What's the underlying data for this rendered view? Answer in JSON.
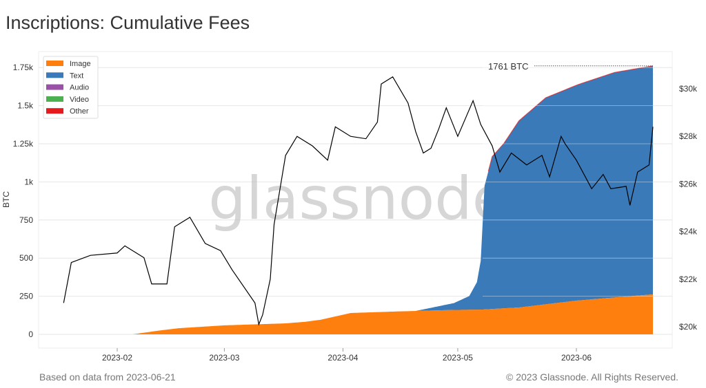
{
  "title": "Inscriptions: Cumulative Fees",
  "footer": {
    "left": "Based on data from 2023-06-21",
    "right": "© 2023 Glassnode. All Rights Reserved."
  },
  "watermark": "glassnode",
  "chart_data": {
    "type": "area",
    "title": "Inscriptions: Cumulative Fees",
    "ylabel": "BTC",
    "ylim": [
      0,
      1800
    ],
    "y_ticks": [
      "0",
      "250",
      "500",
      "750",
      "1k",
      "1.25k",
      "1.5k",
      "1.75k"
    ],
    "y2_ticks": [
      "$20k",
      "$22k",
      "$24k",
      "$26k",
      "$28k",
      "$30k"
    ],
    "y2lim": [
      19700,
      31300
    ],
    "x_ticks": [
      "2023-02",
      "2023-03",
      "2023-04",
      "2023-05",
      "2023-06"
    ],
    "grid": true,
    "legend": {
      "position": "top-left",
      "entries": [
        {
          "name": "Image",
          "color": "#ff7f0e"
        },
        {
          "name": "Text",
          "color": "#3a7ab8"
        },
        {
          "name": "Audio",
          "color": "#9b4fa8"
        },
        {
          "name": "Video",
          "color": "#4caf50"
        },
        {
          "name": "Other",
          "color": "#e41a1c"
        }
      ]
    },
    "annotation": "1761 BTC",
    "series": [
      {
        "name": "Image",
        "color": "#ff7f0e",
        "x": [
          "2023-02-05",
          "2023-02-12",
          "2023-02-17",
          "2023-03-01",
          "2023-03-17",
          "2023-03-22",
          "2023-03-26",
          "2023-04-03",
          "2023-04-15",
          "2023-04-30",
          "2023-05-07",
          "2023-05-17",
          "2023-06-01",
          "2023-06-10",
          "2023-06-21"
        ],
        "values": [
          0,
          25,
          40,
          59,
          72,
          82,
          95,
          140,
          150,
          160,
          162,
          176,
          221,
          240,
          262
        ]
      },
      {
        "name": "Text",
        "color": "#3a7ab8",
        "x": [
          "2023-04-20",
          "2023-04-30",
          "2023-05-04",
          "2023-05-06",
          "2023-05-07",
          "2023-05-08",
          "2023-05-10",
          "2023-05-13",
          "2023-05-17",
          "2023-05-24",
          "2023-06-02",
          "2023-06-11",
          "2023-06-21"
        ],
        "values": [
          0,
          45,
          90,
          180,
          320,
          810,
          1000,
          1080,
          1225,
          1355,
          1420,
          1476,
          1499
        ]
      },
      {
        "name": "Other",
        "color": "#e41a1c",
        "x": [
          "2023-06-21"
        ],
        "values": [
          0
        ]
      }
    ],
    "price": {
      "color": "#000000",
      "x": [
        "2023-01-18",
        "2023-01-20",
        "2023-01-25",
        "2023-02-01",
        "2023-02-03",
        "2023-02-08",
        "2023-02-10",
        "2023-02-14",
        "2023-02-16",
        "2023-02-20",
        "2023-02-24",
        "2023-02-28",
        "2023-03-03",
        "2023-03-09",
        "2023-03-10",
        "2023-03-11",
        "2023-03-13",
        "2023-03-14",
        "2023-03-17",
        "2023-03-20",
        "2023-03-24",
        "2023-03-28",
        "2023-03-30",
        "2023-04-03",
        "2023-04-07",
        "2023-04-10",
        "2023-04-11",
        "2023-04-14",
        "2023-04-18",
        "2023-04-20",
        "2023-04-22",
        "2023-04-24",
        "2023-04-26",
        "2023-04-28",
        "2023-05-01",
        "2023-05-05",
        "2023-05-07",
        "2023-05-10",
        "2023-05-12",
        "2023-05-15",
        "2023-05-19",
        "2023-05-23",
        "2023-05-25",
        "2023-05-28",
        "2023-05-29",
        "2023-06-01",
        "2023-06-05",
        "2023-06-08",
        "2023-06-10",
        "2023-06-14",
        "2023-06-15",
        "2023-06-17",
        "2023-06-20",
        "2023-06-21"
      ],
      "values": [
        21000,
        22700,
        23000,
        23100,
        23400,
        22900,
        21800,
        21800,
        24200,
        24600,
        23500,
        23200,
        22400,
        21000,
        20100,
        20500,
        22000,
        24300,
        27200,
        28000,
        27600,
        27000,
        28400,
        28000,
        27900,
        28600,
        30200,
        30500,
        29400,
        28200,
        27300,
        27500,
        28300,
        29200,
        28000,
        29500,
        28500,
        27600,
        26500,
        27300,
        26800,
        27200,
        26300,
        28000,
        27700,
        27000,
        25800,
        26400,
        25800,
        25900,
        25100,
        26500,
        26800,
        28400
      ]
    }
  }
}
